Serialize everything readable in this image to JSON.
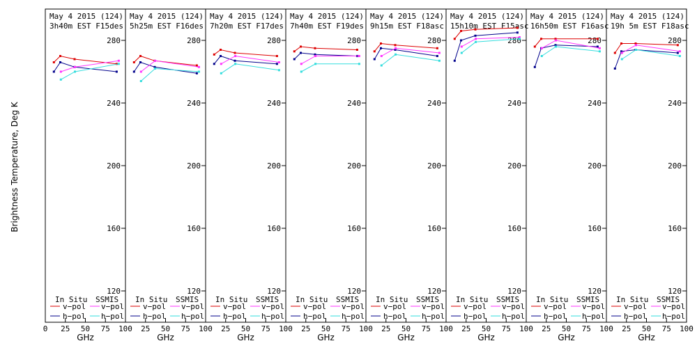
{
  "chart_data": {
    "type": "line",
    "ylabel": "Brightness Temperature, Deg K",
    "xlabel": "GHz",
    "ylim": [
      110,
      295
    ],
    "xlim": [
      0,
      100
    ],
    "yticks": [
      120,
      160,
      200,
      240,
      280
    ],
    "xticks": [
      0,
      25,
      50,
      75,
      100
    ],
    "xtick_labels": [
      "0",
      "25",
      "50",
      "75",
      "100"
    ],
    "legend": {
      "col1_header": "In Situ",
      "col2_header": "SSMIS",
      "row_vpol": "v−pol",
      "row_hpol": "h−pol"
    },
    "colors": {
      "insitu_v": "#dd0000",
      "insitu_h": "#00008b",
      "ssmis_v": "#ff33ff",
      "ssmis_h": "#33dddd"
    },
    "panels": [
      {
        "title1": "May 4 2015 (124)",
        "title2": "3h40m  EST F15des",
        "insitu_x": [
          10.7,
          18.7,
          36.5,
          89.0
        ],
        "insitu_v": [
          266,
          270,
          268,
          265
        ],
        "insitu_h": [
          260,
          266,
          263,
          260
        ],
        "ssmis_x": [
          19.35,
          37.0,
          91.65
        ],
        "ssmis_v": [
          260,
          263,
          267
        ],
        "ssmis_h": [
          255,
          260,
          265
        ]
      },
      {
        "title1": "May 4 2015 (124)",
        "title2": "5h25m  EST F16des",
        "insitu_x": [
          10.7,
          18.7,
          36.5,
          89.0
        ],
        "insitu_v": [
          266,
          270,
          267,
          264
        ],
        "insitu_h": [
          260,
          266,
          263,
          259
        ],
        "ssmis_x": [
          19.35,
          37.0,
          91.65
        ],
        "ssmis_v": [
          260,
          267,
          263
        ],
        "ssmis_h": [
          254,
          262,
          260
        ]
      },
      {
        "title1": "May 4 2015 (124)",
        "title2": "7h20m  EST F17des",
        "insitu_x": [
          10.7,
          18.7,
          36.5,
          89.0
        ],
        "insitu_v": [
          271,
          274,
          272,
          270
        ],
        "insitu_h": [
          265,
          270,
          267,
          265
        ],
        "ssmis_x": [
          19.35,
          37.0,
          91.65
        ],
        "ssmis_v": [
          265,
          270,
          266
        ],
        "ssmis_h": [
          259,
          265,
          261
        ]
      },
      {
        "title1": "May 4 2015 (124)",
        "title2": "7h40m  EST F19des",
        "insitu_x": [
          10.7,
          18.7,
          36.5,
          89.0
        ],
        "insitu_v": [
          273,
          276,
          275,
          274
        ],
        "insitu_h": [
          268,
          272,
          271,
          270
        ],
        "ssmis_x": [
          19.35,
          37.0,
          91.65
        ],
        "ssmis_v": [
          265,
          270,
          270
        ],
        "ssmis_h": [
          260,
          265,
          265
        ]
      },
      {
        "title1": "May 4 2015 (124)",
        "title2": "9h15m  EST F18asc",
        "insitu_x": [
          10.7,
          18.7,
          36.5,
          89.0
        ],
        "insitu_v": [
          273,
          278,
          277,
          275
        ],
        "insitu_h": [
          268,
          275,
          274,
          270
        ],
        "ssmis_x": [
          19.35,
          37.0,
          91.65
        ],
        "ssmis_v": [
          270,
          275,
          272
        ],
        "ssmis_h": [
          264,
          271,
          267
        ]
      },
      {
        "title1": "May 4 2015 (124)",
        "title2": "15h10m EST F15asc",
        "insitu_x": [
          10.7,
          18.7,
          36.5,
          89.0
        ],
        "insitu_v": [
          281,
          286,
          287,
          288
        ],
        "insitu_h": [
          267,
          280,
          283,
          285
        ],
        "ssmis_x": [
          19.35,
          37.0,
          91.65
        ],
        "ssmis_v": [
          276,
          281,
          282
        ],
        "ssmis_h": [
          272,
          279,
          281
        ]
      },
      {
        "title1": "May 4 2015 (124)",
        "title2": "16h50m EST F16asc",
        "insitu_x": [
          10.7,
          18.7,
          36.5,
          89.0
        ],
        "insitu_v": [
          276,
          281,
          281,
          281
        ],
        "insitu_h": [
          263,
          275,
          277,
          276
        ],
        "ssmis_x": [
          19.35,
          37.0,
          91.65
        ],
        "ssmis_v": [
          275,
          280,
          275
        ],
        "ssmis_h": [
          270,
          276,
          273
        ]
      },
      {
        "title1": "May 4 2015 (124)",
        "title2": "19h 5m  EST F18asc",
        "insitu_x": [
          10.7,
          18.7,
          36.5,
          89.0
        ],
        "insitu_v": [
          272,
          278,
          278,
          277
        ],
        "insitu_h": [
          262,
          273,
          274,
          272
        ],
        "ssmis_x": [
          19.35,
          37.0,
          91.65
        ],
        "ssmis_v": [
          272,
          277,
          273
        ],
        "ssmis_h": [
          268,
          274,
          270
        ]
      }
    ]
  }
}
